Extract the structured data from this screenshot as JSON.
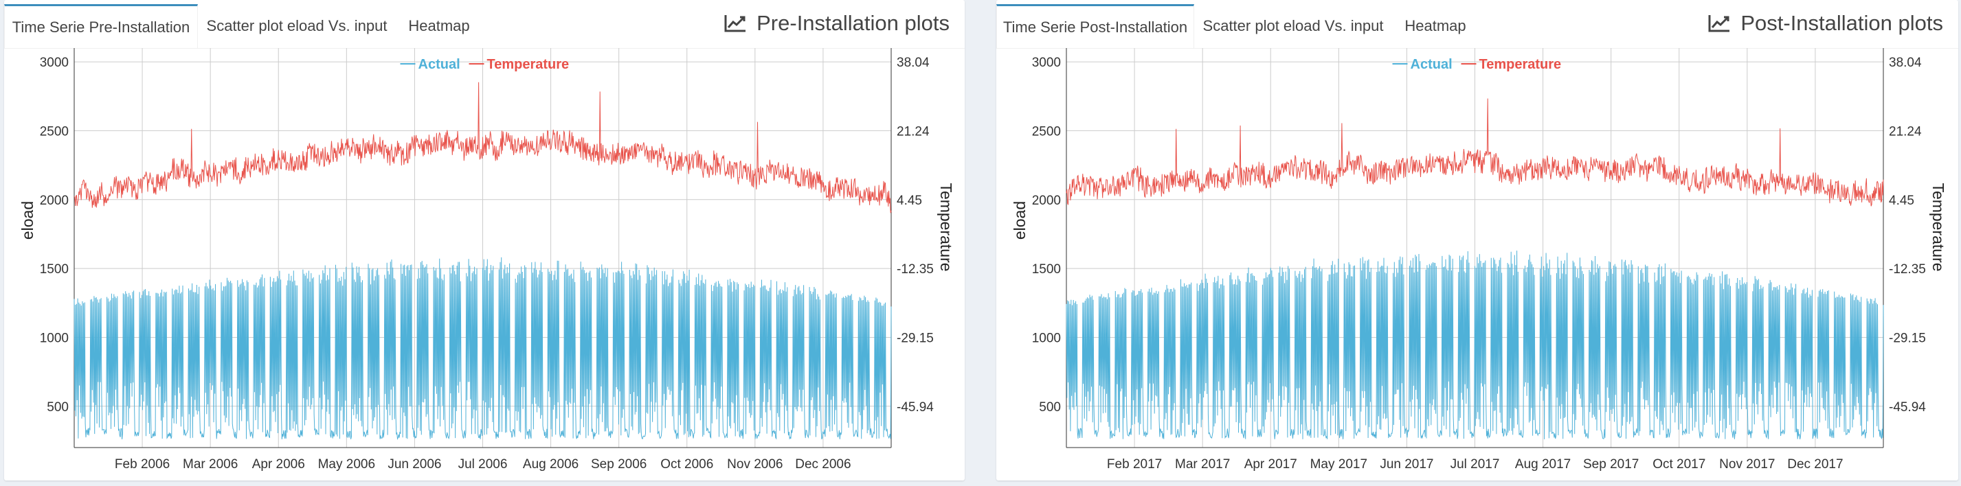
{
  "colors": {
    "actual": "#4fb1d8",
    "temperature": "#e8524a",
    "tab_accent": "#3c8dbc",
    "grid": "#cccccc"
  },
  "panels": [
    {
      "id": "pre",
      "title": "Pre-Installation plots",
      "title_icon": "line-chart-icon",
      "tabs": [
        {
          "label": "Time Serie Pre-Installation",
          "active": true
        },
        {
          "label": "Scatter plot eload Vs. input",
          "active": false
        },
        {
          "label": "Heatmap",
          "active": false
        }
      ],
      "legend": [
        "Actual",
        "Temperature"
      ],
      "xticks": [
        "Feb 2006",
        "Mar 2006",
        "Apr 2006",
        "May 2006",
        "Jun 2006",
        "Jul 2006",
        "Aug 2006",
        "Sep 2006",
        "Oct 2006",
        "Nov 2006",
        "Dec 2006"
      ],
      "ylabel": "eload",
      "y2label": "Temperature",
      "yticks": [
        "3000",
        "2500",
        "2000",
        "1500",
        "1000",
        "500"
      ],
      "y2ticks": [
        "38.04",
        "21.24",
        "4.45",
        "-12.35",
        "-29.15",
        "-45.94"
      ]
    },
    {
      "id": "post",
      "title": "Post-Installation plots",
      "title_icon": "line-chart-icon",
      "tabs": [
        {
          "label": "Time Serie Post-Installation",
          "active": true
        },
        {
          "label": "Scatter plot eload Vs. input",
          "active": false
        },
        {
          "label": "Heatmap",
          "active": false
        }
      ],
      "legend": [
        "Actual",
        "Temperature"
      ],
      "xticks": [
        "Feb 2017",
        "Mar 2017",
        "Apr 2017",
        "May 2017",
        "Jun 2017",
        "Jul 2017",
        "Aug 2017",
        "Sep 2017",
        "Oct 2017",
        "Nov 2017",
        "Dec 2017"
      ],
      "ylabel": "eload",
      "y2label": "Temperature",
      "yticks": [
        "3000",
        "2500",
        "2000",
        "1500",
        "1000",
        "500"
      ],
      "y2ticks": [
        "38.04",
        "21.24",
        "4.45",
        "-12.35",
        "-29.15",
        "-45.94"
      ]
    }
  ],
  "chart_data": [
    {
      "type": "line",
      "series": [
        {
          "name": "Actual",
          "axis": "left",
          "range_y": [
            260,
            1280
          ],
          "peak_y": 1600
        },
        {
          "name": "Temperature",
          "axis": "right",
          "start_y": 2000,
          "peak_y": 2950
        }
      ],
      "x_range": [
        "2006-01-01",
        "2006-12-31"
      ],
      "ylim": [
        200,
        3100
      ],
      "y2lim": [
        -55,
        44
      ]
    },
    {
      "type": "line",
      "series": [
        {
          "name": "Actual",
          "axis": "left",
          "range_y": [
            260,
            1280
          ],
          "peak_y": 1650
        },
        {
          "name": "Temperature",
          "axis": "right",
          "start_y": 2050,
          "peak_y": 2800
        }
      ],
      "x_range": [
        "2017-01-01",
        "2017-12-31"
      ],
      "ylim": [
        200,
        3100
      ],
      "y2lim": [
        -55,
        44
      ]
    }
  ]
}
